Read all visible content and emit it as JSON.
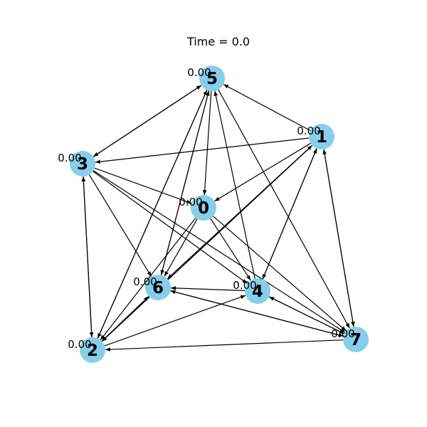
{
  "title": "Time = 0.0",
  "colors": {
    "node_fill": "#87CEEB",
    "edge": "#000000",
    "background": "#ffffff"
  },
  "nodes": [
    {
      "id": "0",
      "value": "0.00"
    },
    {
      "id": "1",
      "value": "0.00"
    },
    {
      "id": "2",
      "value": "0.00"
    },
    {
      "id": "3",
      "value": "0.00"
    },
    {
      "id": "4",
      "value": "0.00"
    },
    {
      "id": "5",
      "value": "0.00"
    },
    {
      "id": "6",
      "value": "0.00"
    },
    {
      "id": "7",
      "value": "0.00"
    }
  ],
  "edges": [
    [
      "5",
      "0"
    ],
    [
      "0",
      "6"
    ],
    [
      "0",
      "2"
    ],
    [
      "0",
      "4"
    ],
    [
      "0",
      "7"
    ],
    [
      "1",
      "0"
    ],
    [
      "3",
      "0"
    ],
    [
      "1",
      "5"
    ],
    [
      "1",
      "3"
    ],
    [
      "1",
      "6"
    ],
    [
      "1",
      "2"
    ],
    [
      "1",
      "4"
    ],
    [
      "1",
      "7"
    ],
    [
      "7",
      "1"
    ],
    [
      "6",
      "1"
    ],
    [
      "4",
      "1"
    ],
    [
      "3",
      "5"
    ],
    [
      "5",
      "3"
    ],
    [
      "3",
      "2"
    ],
    [
      "2",
      "3"
    ],
    [
      "3",
      "6"
    ],
    [
      "3",
      "4"
    ],
    [
      "3",
      "7"
    ],
    [
      "4",
      "5"
    ],
    [
      "4",
      "6"
    ],
    [
      "4",
      "7"
    ],
    [
      "2",
      "4"
    ],
    [
      "5",
      "6"
    ],
    [
      "5",
      "2"
    ],
    [
      "5",
      "7"
    ],
    [
      "6",
      "5"
    ],
    [
      "2",
      "5"
    ],
    [
      "6",
      "2"
    ],
    [
      "2",
      "6"
    ],
    [
      "6",
      "7"
    ],
    [
      "7",
      "2"
    ],
    [
      "7",
      "6"
    ],
    [
      "7",
      "4"
    ]
  ]
}
